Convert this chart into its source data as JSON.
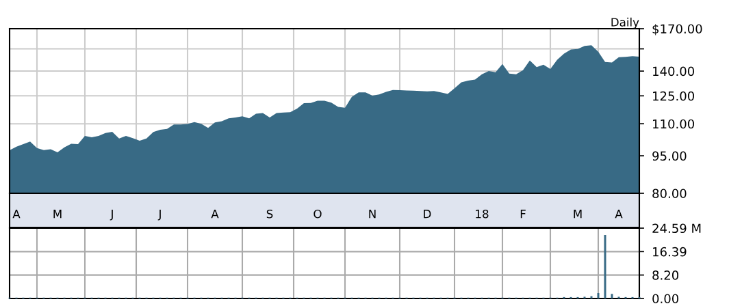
{
  "chart_data": [
    {
      "type": "area",
      "title": "Daily",
      "log": true,
      "grid": true,
      "color": "#386a85",
      "categories": [
        null,
        "A",
        null,
        null,
        null,
        null,
        null,
        "M",
        null,
        null,
        null,
        null,
        null,
        null,
        null,
        "J",
        null,
        null,
        null,
        null,
        null,
        null,
        "J",
        null,
        null,
        null,
        null,
        null,
        null,
        null,
        "A",
        null,
        null,
        null,
        null,
        null,
        null,
        null,
        "S",
        null,
        null,
        null,
        null,
        null,
        null,
        "O",
        null,
        null,
        null,
        null,
        null,
        null,
        null,
        "N",
        null,
        null,
        null,
        null,
        null,
        null,
        null,
        "D",
        null,
        null,
        null,
        null,
        null,
        null,
        null,
        "18",
        null,
        null,
        null,
        null,
        null,
        "F",
        null,
        null,
        null,
        null,
        null,
        null,
        null,
        "M",
        null,
        null,
        null,
        null,
        null,
        "A",
        null,
        null,
        null
      ],
      "values": [
        97.4,
        99.0,
        100.2,
        101.4,
        98.4,
        97.5,
        97.9,
        96.5,
        98.7,
        100.4,
        100.2,
        104.0,
        103.4,
        104.0,
        105.4,
        106.0,
        102.8,
        104.0,
        103.0,
        101.8,
        102.8,
        105.9,
        107.0,
        107.4,
        109.6,
        109.6,
        109.9,
        110.8,
        110.0,
        107.9,
        110.7,
        111.3,
        112.8,
        113.2,
        113.8,
        112.8,
        115.2,
        115.5,
        113.2,
        115.5,
        115.8,
        116.0,
        117.9,
        120.9,
        121.0,
        122.2,
        122.2,
        121.2,
        118.8,
        118.4,
        124.4,
        127.0,
        127.0,
        125.1,
        125.8,
        127.3,
        128.4,
        128.3,
        128.1,
        128.0,
        127.8,
        127.6,
        127.8,
        127.0,
        126.1,
        129.4,
        133.0,
        134.0,
        134.7,
        138.0,
        140.0,
        139.3,
        144.6,
        138.4,
        138.0,
        140.6,
        147.0,
        142.6,
        144.2,
        141.3,
        147.5,
        151.7,
        154.5,
        154.9,
        157.1,
        157.6,
        153.0,
        146.0,
        145.6,
        149.2,
        149.4,
        149.9,
        149.5
      ],
      "ylim": [
        80,
        170
      ],
      "yticks": [
        {
          "value": 170,
          "label": "$170.00"
        },
        {
          "value": 155,
          "label": null
        },
        {
          "value": 140,
          "label": "140.00"
        },
        {
          "value": 125,
          "label": "125.00"
        },
        {
          "value": 110,
          "label": "110.00"
        },
        {
          "value": 95,
          "label": "95.00"
        },
        {
          "value": 80,
          "label": "80.00"
        }
      ]
    },
    {
      "type": "bar",
      "grid": true,
      "color": "#386a85",
      "tick_labels": "y",
      "categories": [
        null,
        null,
        null,
        null,
        null,
        null,
        null,
        null,
        null,
        null,
        null,
        null,
        null,
        null,
        null,
        null,
        null,
        null,
        null,
        null,
        null,
        null,
        null,
        null,
        null,
        null,
        null,
        null,
        null,
        null,
        null,
        null,
        null,
        null,
        null,
        null,
        null,
        null,
        null,
        null,
        null,
        null,
        null,
        null,
        null,
        null,
        null,
        null,
        null,
        null,
        null,
        null,
        null,
        null,
        null,
        null,
        null,
        null,
        null,
        null,
        null,
        null,
        null,
        null,
        null,
        null,
        null,
        null,
        null,
        null,
        null,
        null,
        null,
        null,
        null,
        null,
        null,
        null,
        null,
        null,
        null,
        null,
        null,
        null,
        null,
        null,
        null,
        null,
        null,
        null,
        null,
        null,
        null
      ],
      "values": [
        0.3,
        0.3,
        0.3,
        0.3,
        0.3,
        0.3,
        0.3,
        0.3,
        0.3,
        0.3,
        0.3,
        0.3,
        0.3,
        0.3,
        0.3,
        0.3,
        0.3,
        0.3,
        0.3,
        0.3,
        0.3,
        0.3,
        0.3,
        0.3,
        0.3,
        0.3,
        0.3,
        0.3,
        0.3,
        0.3,
        0.3,
        0.3,
        0.3,
        0.3,
        0.3,
        0.3,
        0.3,
        0.3,
        0.3,
        0.3,
        0.3,
        0.3,
        0.3,
        0.3,
        0.3,
        0.3,
        0.3,
        0.3,
        0.3,
        0.3,
        0.3,
        0.3,
        0.3,
        0.3,
        0.3,
        0.3,
        0.3,
        0.3,
        0.3,
        0.3,
        0.3,
        0.3,
        0.3,
        0.3,
        0.3,
        0.3,
        0.3,
        0.3,
        0.3,
        0.3,
        0.3,
        0.3,
        0.3,
        0.3,
        0.3,
        0.3,
        0.3,
        0.3,
        0.3,
        0.3,
        0.3,
        0.5,
        0.5,
        0.5,
        0.6,
        0.8,
        1.9,
        22.2,
        1.6,
        0.6,
        0.5,
        0.5,
        0.5
      ],
      "ylim": [
        0,
        24.59
      ],
      "yticks": [
        {
          "value": 24.59,
          "label": "24.59 M"
        },
        {
          "value": 16.39,
          "label": "16.39"
        },
        {
          "value": 8.2,
          "label": "8.20"
        },
        {
          "value": 0,
          "label": "0.00"
        }
      ]
    }
  ]
}
